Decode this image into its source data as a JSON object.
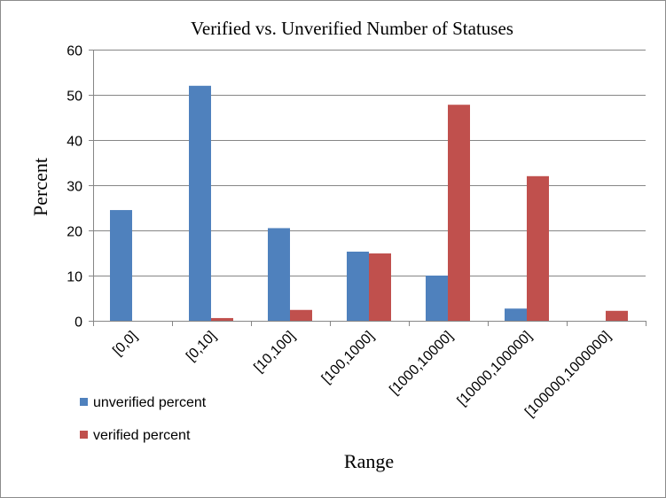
{
  "chart_data": {
    "type": "bar",
    "title": "Verified vs. Unverified  Number of Statuses",
    "xlabel": "Range",
    "ylabel": "Percent",
    "ylim": [
      0,
      60
    ],
    "yticks": [
      0,
      10,
      20,
      30,
      40,
      50,
      60
    ],
    "grid": true,
    "legend_position": "bottom-left",
    "categories": [
      "[0,0]",
      "[0,10]",
      "[10,100]",
      "[100,1000]",
      "[1000,10000]",
      "[10000,100000]",
      "[100000,1000000]"
    ],
    "series": [
      {
        "name": "unverified percent",
        "color": "#4f81bd",
        "values": [
          24.5,
          52.0,
          20.5,
          15.3,
          10.0,
          2.7,
          0.0
        ]
      },
      {
        "name": "verified percent",
        "color": "#c0504d",
        "values": [
          0.0,
          0.6,
          2.4,
          14.9,
          47.8,
          32.0,
          2.2
        ]
      }
    ]
  }
}
